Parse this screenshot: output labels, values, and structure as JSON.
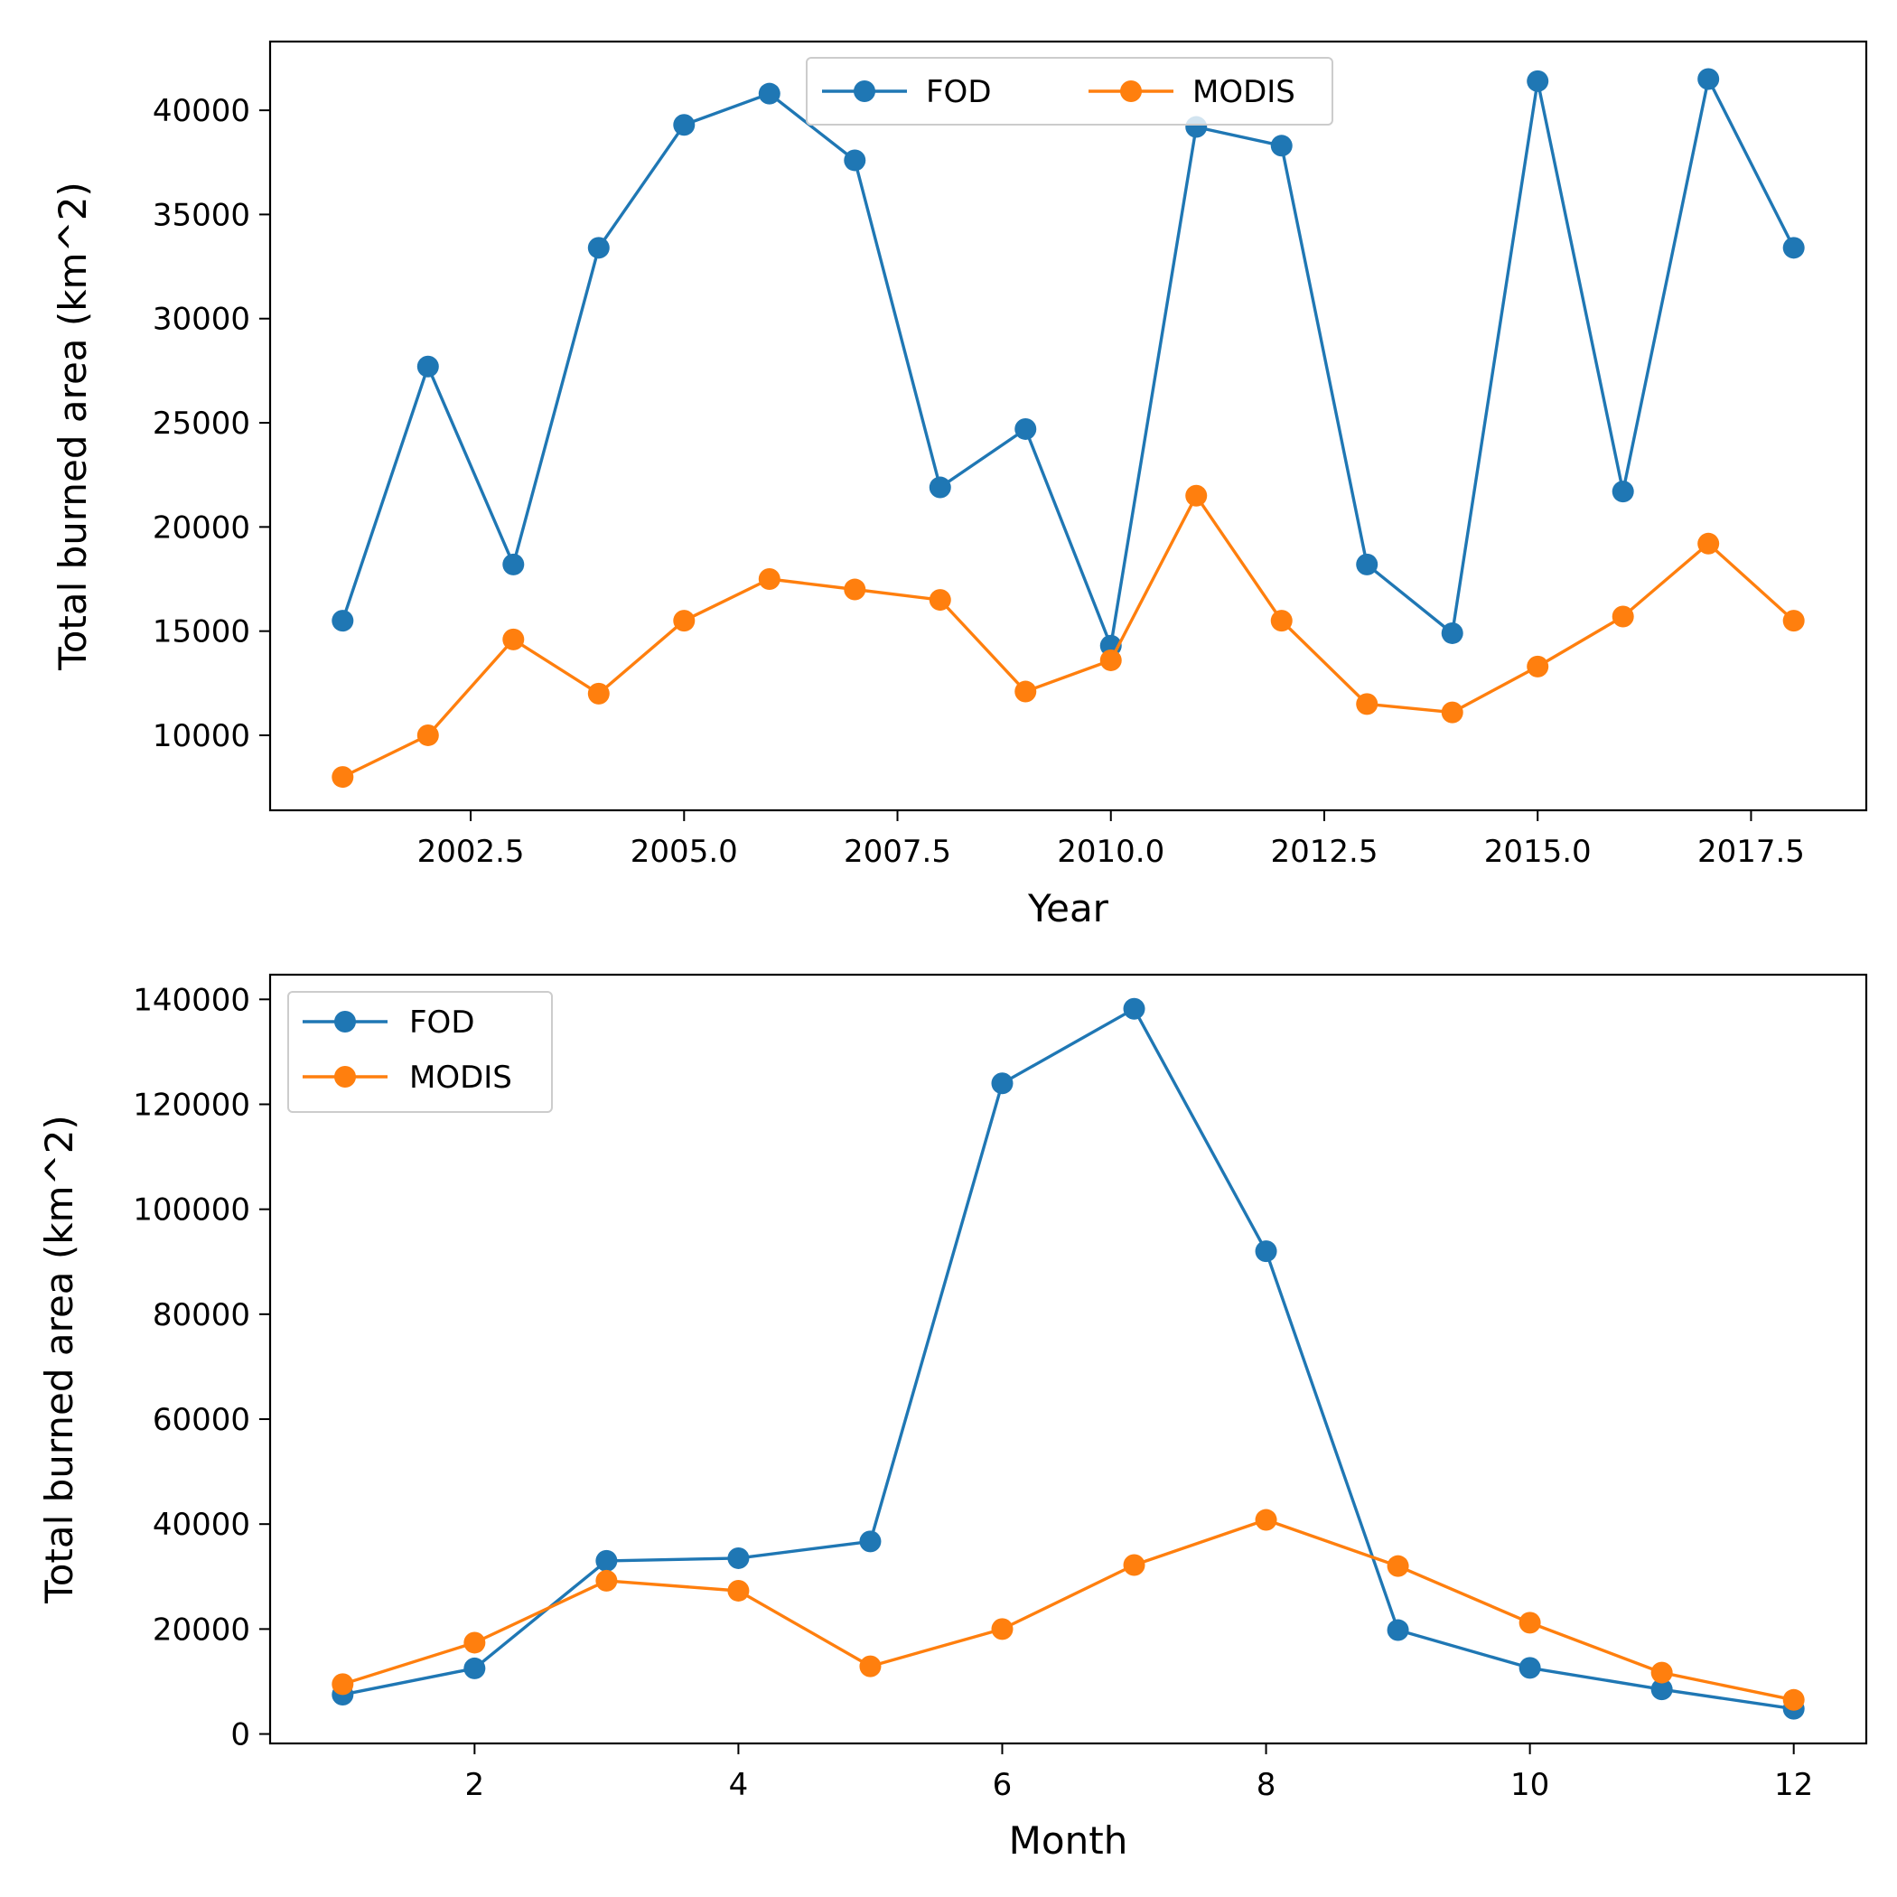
{
  "chart_data": [
    {
      "type": "line",
      "xlabel": "Year",
      "ylabel": "Total burned area (km^2)",
      "x": [
        2001,
        2002,
        2003,
        2004,
        2005,
        2006,
        2007,
        2008,
        2009,
        2010,
        2011,
        2012,
        2013,
        2014,
        2015,
        2016,
        2017,
        2018
      ],
      "xlim": [
        2000.15,
        2018.85
      ],
      "ylim": [
        6400,
        43300
      ],
      "xticks": [
        2002.5,
        2005.0,
        2007.5,
        2010.0,
        2012.5,
        2015.0,
        2017.5
      ],
      "xtick_labels": [
        "2002.5",
        "2005.0",
        "2007.5",
        "2010.0",
        "2012.5",
        "2015.0",
        "2017.5"
      ],
      "yticks": [
        10000,
        15000,
        20000,
        25000,
        30000,
        35000,
        40000
      ],
      "ytick_labels": [
        "10000",
        "15000",
        "20000",
        "25000",
        "30000",
        "35000",
        "40000"
      ],
      "grid": false,
      "legend": {
        "placement": "upper center",
        "columns": 2
      },
      "series": [
        {
          "name": "FOD",
          "color": "#1f77b4",
          "values": [
            15500,
            27700,
            18200,
            33400,
            39300,
            40800,
            37600,
            21900,
            24700,
            14300,
            39200,
            38300,
            18200,
            14900,
            41400,
            21700,
            41500,
            33400
          ]
        },
        {
          "name": "MODIS",
          "color": "#ff7f0e",
          "values": [
            8000,
            10000,
            14600,
            12000,
            15500,
            17500,
            17000,
            16500,
            12100,
            13600,
            21500,
            15500,
            11500,
            11100,
            13300,
            15700,
            19200,
            15500
          ]
        }
      ]
    },
    {
      "type": "line",
      "xlabel": "Month",
      "ylabel": "Total burned area (km^2)",
      "x": [
        1,
        2,
        3,
        4,
        5,
        6,
        7,
        8,
        9,
        10,
        11,
        12
      ],
      "xlim": [
        0.45,
        12.55
      ],
      "ylim": [
        -1800,
        144700
      ],
      "xticks": [
        2,
        4,
        6,
        8,
        10,
        12
      ],
      "xtick_labels": [
        "2",
        "4",
        "6",
        "8",
        "10",
        "12"
      ],
      "yticks": [
        0,
        20000,
        40000,
        60000,
        80000,
        100000,
        120000,
        140000
      ],
      "ytick_labels": [
        "0",
        "20000",
        "40000",
        "60000",
        "80000",
        "100000",
        "120000",
        "140000"
      ],
      "grid": false,
      "legend": {
        "placement": "upper left",
        "columns": 1
      },
      "series": [
        {
          "name": "FOD",
          "color": "#1f77b4",
          "values": [
            7500,
            12500,
            33000,
            33500,
            36700,
            124000,
            138200,
            92000,
            19800,
            12600,
            8500,
            4800
          ]
        },
        {
          "name": "MODIS",
          "color": "#ff7f0e",
          "values": [
            9500,
            17400,
            29200,
            27300,
            12900,
            20000,
            32200,
            40800,
            32000,
            21200,
            11700,
            6500
          ]
        }
      ]
    }
  ]
}
